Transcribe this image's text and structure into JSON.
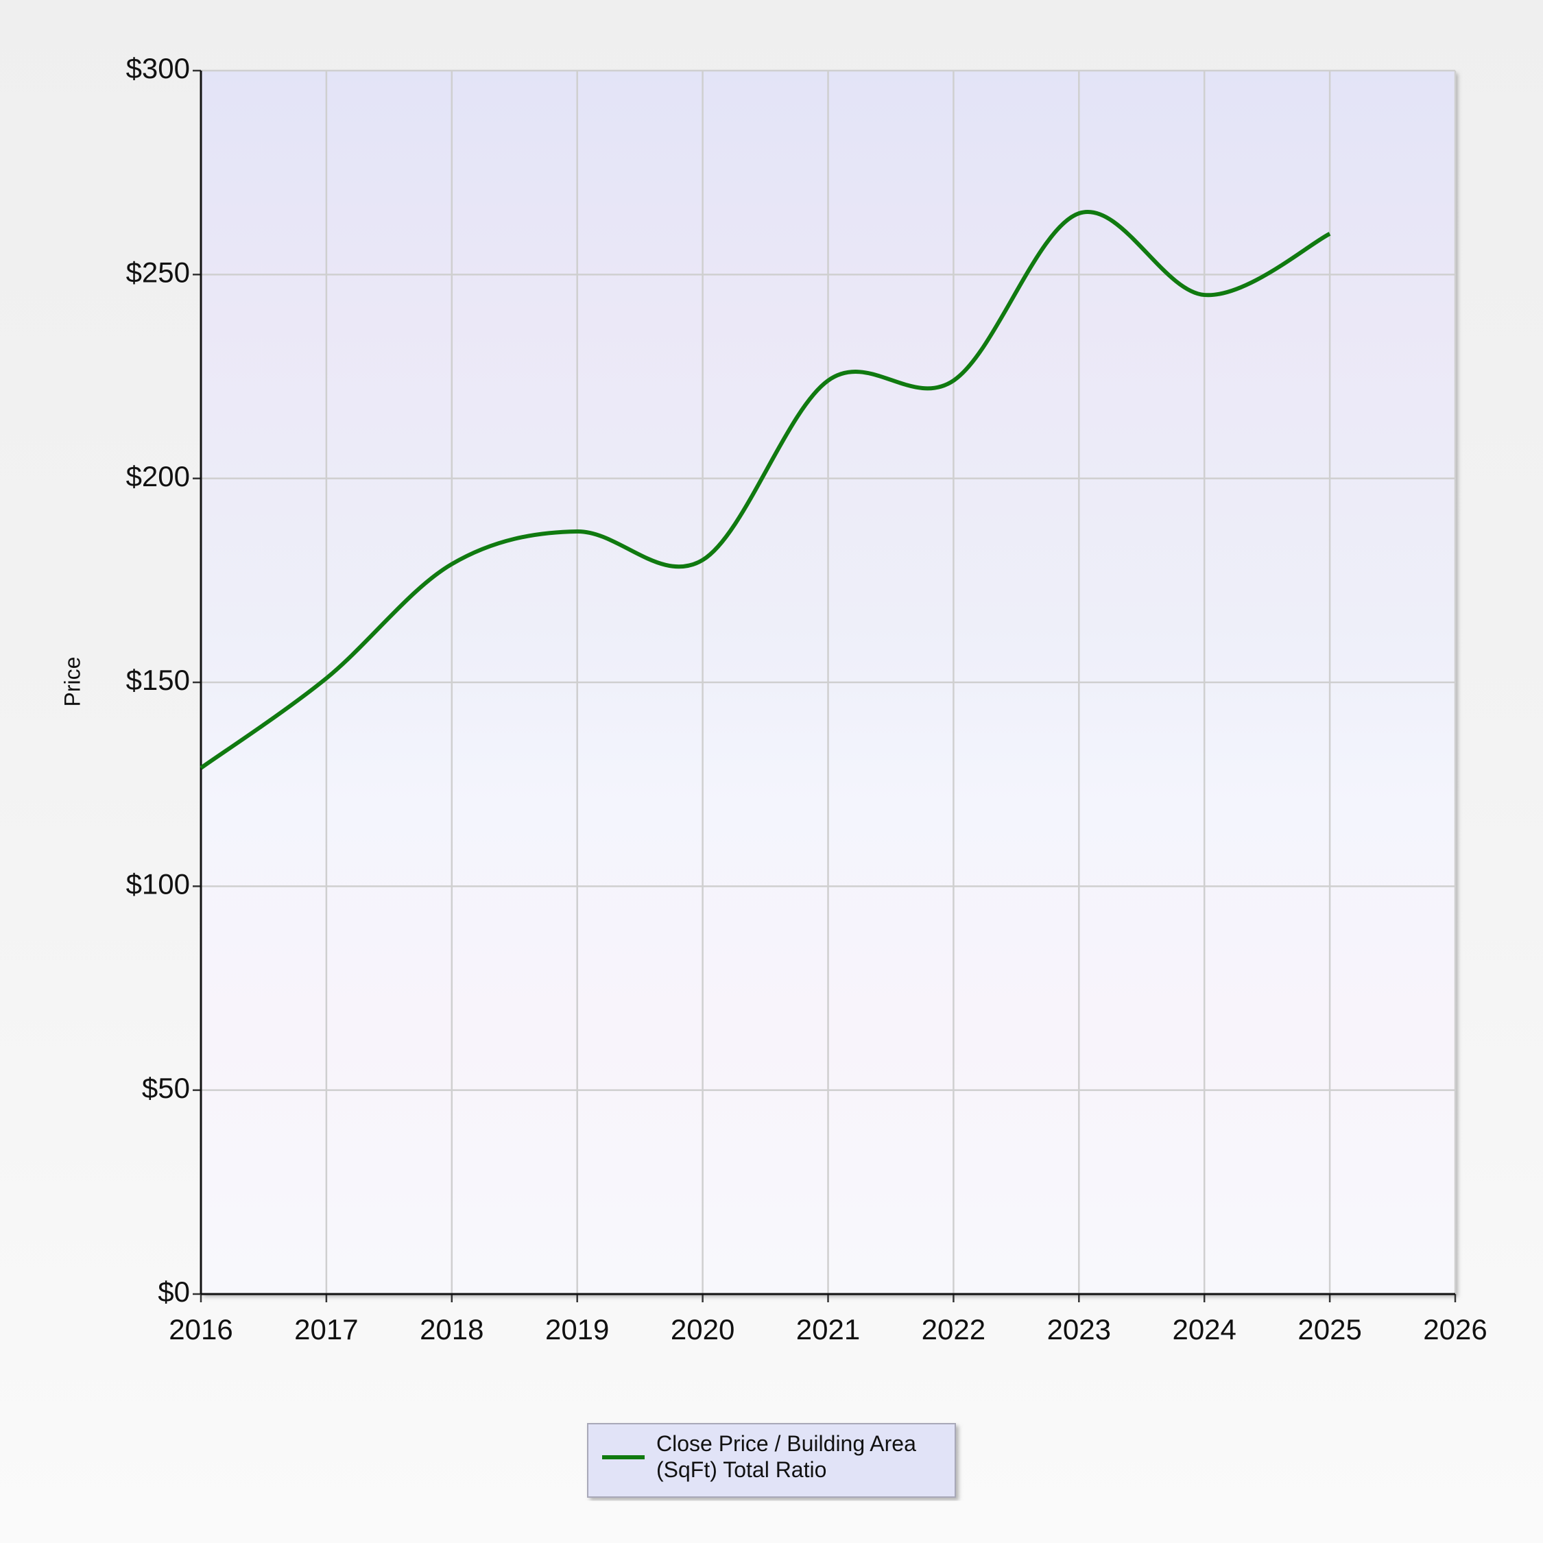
{
  "chart_data": {
    "type": "line",
    "y_label": "Price",
    "x": [
      2016,
      2017,
      2018,
      2019,
      2020,
      2021,
      2022,
      2023,
      2024,
      2025
    ],
    "series": [
      {
        "name": "Close Price / Building Area (SqFt) Total Ratio",
        "color": "#107a10",
        "values": [
          129,
          151,
          179,
          187,
          180,
          224,
          224,
          265,
          245,
          260
        ]
      }
    ],
    "xlim": [
      2016,
      2026
    ],
    "xticks": [
      2016,
      2017,
      2018,
      2019,
      2020,
      2021,
      2022,
      2023,
      2024,
      2025,
      2026
    ],
    "ylim": [
      0,
      300
    ],
    "yticks": [
      {
        "value": 0,
        "label": "$0"
      },
      {
        "value": 50,
        "label": "$50"
      },
      {
        "value": 100,
        "label": "$100"
      },
      {
        "value": 150,
        "label": "$150"
      },
      {
        "value": 200,
        "label": "$200"
      },
      {
        "value": 250,
        "label": "$250"
      },
      {
        "value": 300,
        "label": "$300"
      }
    ],
    "grid": true,
    "legend": "bottom"
  }
}
